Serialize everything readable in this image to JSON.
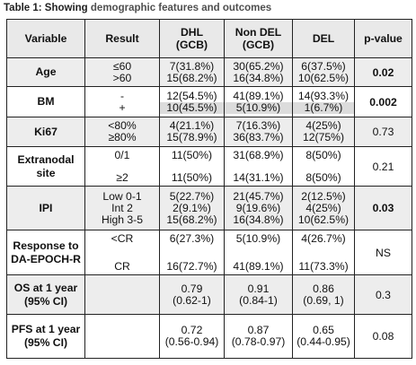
{
  "caption": {
    "prefix": "Table 1: Showing ",
    "rest": "demographic features and outcomes"
  },
  "headers": {
    "variable": "Variable",
    "result": "Result",
    "dhl_line1": "DHL",
    "dhl_line2": "(GCB)",
    "nondel_line1": "Non DEL",
    "nondel_line2": "(GCB)",
    "del": "DEL",
    "pvalue": "p-value"
  },
  "rows": {
    "age": {
      "label": "Age",
      "results": [
        "≤60",
        ">60"
      ],
      "dhl": [
        "7(31.8%)",
        "15(68.2%)"
      ],
      "nondel": [
        "30(65.2%)",
        "16(34.8%)"
      ],
      "del": [
        "6(37.5%)",
        "10(62.5%)"
      ],
      "p": "0.02"
    },
    "bm": {
      "label": "BM",
      "results": [
        "-",
        "+"
      ],
      "dhl": [
        "12(54.5%)",
        "10(45.5%)"
      ],
      "nondel": [
        "41(89.1%)",
        "5(10.9%)"
      ],
      "del": [
        "14(93.3%)",
        "1(6.7%)"
      ],
      "p": "0.002"
    },
    "ki67": {
      "label": "Ki67",
      "results": [
        "<80%",
        "≥80%"
      ],
      "dhl": [
        "4(21.1%)",
        "15(78.9%)"
      ],
      "nondel": [
        "7(16.3%)",
        "36(83.7%)"
      ],
      "del": [
        "4(25%)",
        "12(75%)"
      ],
      "p": "0.73"
    },
    "extranodal": {
      "label_line1": "Extranodal",
      "label_line2": "site",
      "results": [
        "0/1",
        "≥2"
      ],
      "dhl": [
        "11(50%)",
        "11(50%)"
      ],
      "nondel": [
        "31(68.9%)",
        "14(31.1%)"
      ],
      "del": [
        "8(50%)",
        "8(50%)"
      ],
      "p": "0.21"
    },
    "ipi": {
      "label": "IPI",
      "results": [
        "Low 0-1",
        "Int 2",
        "High 3-5"
      ],
      "dhl": [
        "5(22.7%)",
        "2(9.1%)",
        "15(68.2%)"
      ],
      "nondel": [
        "21(45.7%)",
        "9(19.6%)",
        "16(34.8%)"
      ],
      "del": [
        "2(12.5%)",
        "4(25%)",
        "10(62.5%)"
      ],
      "p": "0.03"
    },
    "response": {
      "label_line1": "Response to",
      "label_line2": "DA-EPOCH-R",
      "results": [
        "<CR",
        "CR"
      ],
      "dhl": [
        "6(27.3%)",
        "16(72.7%)"
      ],
      "nondel": [
        "5(10.9%)",
        "41(89.1%)"
      ],
      "del": [
        "4(26.7%)",
        "11(73.3%)"
      ],
      "p": "NS"
    },
    "os": {
      "label_line1": "OS at 1 year",
      "label_line2": "(95% CI)",
      "dhl": [
        "0.79",
        "(0.62-1)"
      ],
      "nondel": [
        "0.91",
        "(0.84-1)"
      ],
      "del": [
        "0.86",
        "(0.69, 1)"
      ],
      "p": "0.3"
    },
    "pfs": {
      "label_line1": "PFS at 1 year",
      "label_line2": "(95% CI)",
      "dhl": [
        "0.72",
        "(0.56-0.94)"
      ],
      "nondel": [
        "0.87",
        "(0.78-0.97)"
      ],
      "del": [
        "0.65",
        "(0.44-0.95)"
      ],
      "p": "0.08"
    }
  }
}
